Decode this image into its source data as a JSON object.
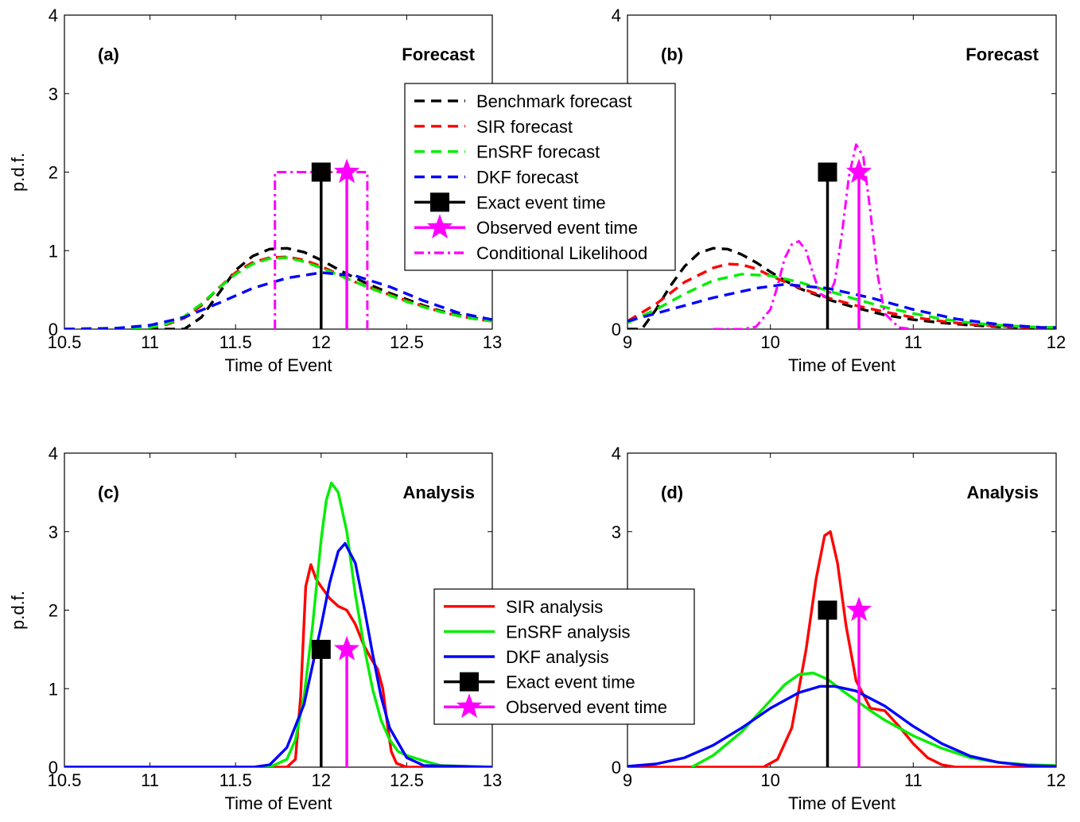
{
  "chart_data": [
    {
      "panel": "a",
      "type": "line",
      "panel_label": "(a)",
      "stage_label": "Forecast",
      "xlabel": "Time of Event",
      "ylabel": "p.d.f.",
      "xlim": [
        10.5,
        13
      ],
      "ylim": [
        0,
        4
      ],
      "xticks": [
        "10.5",
        "11",
        "11.5",
        "12",
        "12.5",
        "13"
      ],
      "yticks": [
        "0",
        "1",
        "2",
        "3",
        "4"
      ],
      "series": [
        {
          "name": "Benchmark forecast",
          "color": "#000000",
          "dash": "dashed",
          "x": [
            10.5,
            11.0,
            11.2,
            11.3,
            11.4,
            11.5,
            11.6,
            11.7,
            11.8,
            11.9,
            12.0,
            12.1,
            12.2,
            12.3,
            12.4,
            12.5,
            12.6,
            12.7,
            12.8,
            12.9,
            13.0
          ],
          "y": [
            0,
            0,
            0.0,
            0.15,
            0.45,
            0.75,
            0.93,
            1.02,
            1.03,
            0.98,
            0.88,
            0.76,
            0.65,
            0.55,
            0.46,
            0.38,
            0.3,
            0.23,
            0.18,
            0.14,
            0.11
          ]
        },
        {
          "name": "SIR forecast",
          "color": "#ff0000",
          "dash": "dashed",
          "x": [
            10.5,
            11.0,
            11.1,
            11.2,
            11.3,
            11.4,
            11.5,
            11.6,
            11.7,
            11.8,
            11.9,
            12.0,
            12.1,
            12.2,
            12.3,
            12.4,
            12.5,
            12.6,
            12.7,
            12.8,
            12.9,
            13.0
          ],
          "y": [
            0,
            0.02,
            0.06,
            0.14,
            0.3,
            0.52,
            0.72,
            0.85,
            0.91,
            0.92,
            0.88,
            0.8,
            0.7,
            0.6,
            0.52,
            0.44,
            0.36,
            0.29,
            0.22,
            0.17,
            0.13,
            0.1
          ]
        },
        {
          "name": "EnSRF forecast",
          "color": "#00ee00",
          "dash": "dashed",
          "x": [
            10.5,
            11.0,
            11.1,
            11.2,
            11.3,
            11.4,
            11.5,
            11.6,
            11.7,
            11.8,
            11.9,
            12.0,
            12.1,
            12.2,
            12.3,
            12.4,
            12.5,
            12.6,
            12.7,
            12.8,
            12.9,
            13.0
          ],
          "y": [
            0,
            0.02,
            0.07,
            0.16,
            0.32,
            0.52,
            0.7,
            0.83,
            0.9,
            0.91,
            0.86,
            0.78,
            0.69,
            0.6,
            0.51,
            0.43,
            0.35,
            0.28,
            0.22,
            0.17,
            0.13,
            0.1
          ]
        },
        {
          "name": "DKF forecast",
          "color": "#0000ff",
          "dash": "dashed",
          "x": [
            10.5,
            10.8,
            11.0,
            11.2,
            11.4,
            11.6,
            11.8,
            12.0,
            12.2,
            12.4,
            12.6,
            12.8,
            13.0
          ],
          "y": [
            0,
            0.01,
            0.05,
            0.15,
            0.33,
            0.52,
            0.65,
            0.72,
            0.68,
            0.54,
            0.36,
            0.21,
            0.12
          ]
        },
        {
          "name": "Conditional Likelihood",
          "color": "#ff00ff",
          "dash": "dashdot",
          "x": [
            11.73,
            11.73,
            12.27,
            12.27
          ],
          "y": [
            0,
            2,
            2,
            0
          ]
        }
      ],
      "exact_event": {
        "name": "Exact event time",
        "x": 12.0,
        "y": 2
      },
      "observed_event": {
        "name": "Observed event time",
        "x": 12.15,
        "y": 2
      },
      "legend": "top-right"
    },
    {
      "panel": "b",
      "type": "line",
      "panel_label": "(b)",
      "stage_label": "Forecast",
      "xlabel": "Time of Event",
      "ylabel": "",
      "xlim": [
        9,
        12
      ],
      "ylim": [
        0,
        4
      ],
      "xticks": [
        "9",
        "10",
        "11",
        "12"
      ],
      "yticks": [
        "0",
        "1",
        "2",
        "3",
        "4"
      ],
      "series": [
        {
          "name": "Benchmark forecast",
          "color": "#000000",
          "dash": "dashed",
          "x": [
            9.0,
            9.1,
            9.2,
            9.3,
            9.4,
            9.5,
            9.6,
            9.7,
            9.8,
            9.9,
            10.0,
            10.1,
            10.2,
            10.4,
            10.6,
            10.8,
            11.0,
            11.2,
            11.4,
            11.6,
            11.8,
            12.0
          ],
          "y": [
            0.0,
            0.0,
            0.25,
            0.55,
            0.8,
            0.97,
            1.03,
            1.02,
            0.95,
            0.85,
            0.73,
            0.62,
            0.52,
            0.38,
            0.27,
            0.18,
            0.12,
            0.08,
            0.05,
            0.03,
            0.02,
            0.01
          ]
        },
        {
          "name": "SIR forecast",
          "color": "#ff0000",
          "dash": "dashed",
          "x": [
            9.0,
            9.2,
            9.4,
            9.6,
            9.7,
            9.8,
            9.9,
            10.0,
            10.2,
            10.4,
            10.6,
            10.8,
            11.0,
            11.2,
            11.4,
            11.6,
            11.8,
            12.0
          ],
          "y": [
            0.1,
            0.32,
            0.6,
            0.78,
            0.83,
            0.82,
            0.77,
            0.68,
            0.53,
            0.4,
            0.3,
            0.22,
            0.15,
            0.1,
            0.06,
            0.04,
            0.02,
            0.01
          ]
        },
        {
          "name": "EnSRF forecast",
          "color": "#00ee00",
          "dash": "dashed",
          "x": [
            9.0,
            9.2,
            9.4,
            9.6,
            9.8,
            10.0,
            10.2,
            10.4,
            10.6,
            10.8,
            11.0,
            11.2,
            11.4,
            11.6,
            11.8,
            12.0
          ],
          "y": [
            0.08,
            0.25,
            0.45,
            0.62,
            0.7,
            0.68,
            0.6,
            0.49,
            0.38,
            0.28,
            0.2,
            0.13,
            0.08,
            0.05,
            0.03,
            0.02
          ]
        },
        {
          "name": "DKF forecast",
          "color": "#0000ff",
          "dash": "dashed",
          "x": [
            9.0,
            9.3,
            9.6,
            9.9,
            10.1,
            10.4,
            10.7,
            11.0,
            11.3,
            11.6,
            11.9,
            12.0
          ],
          "y": [
            0.1,
            0.25,
            0.4,
            0.52,
            0.57,
            0.52,
            0.4,
            0.25,
            0.13,
            0.06,
            0.02,
            0.02
          ]
        },
        {
          "name": "Conditional Likelihood",
          "color": "#ff00ff",
          "dash": "dashdot",
          "x": [
            9.6,
            9.8,
            9.9,
            10.0,
            10.05,
            10.1,
            10.15,
            10.2,
            10.25,
            10.3,
            10.35,
            10.4,
            10.45,
            10.5,
            10.55,
            10.6,
            10.65,
            10.7,
            10.75,
            10.8,
            10.9,
            11.0
          ],
          "y": [
            0,
            0,
            0.03,
            0.25,
            0.55,
            0.9,
            1.08,
            1.12,
            1.0,
            0.7,
            0.45,
            0.4,
            0.6,
            1.2,
            1.95,
            2.35,
            2.2,
            1.5,
            0.7,
            0.2,
            0.02,
            0
          ]
        }
      ],
      "exact_event": {
        "name": "Exact event time",
        "x": 10.4,
        "y": 2
      },
      "observed_event": {
        "name": "Observed event time",
        "x": 10.62,
        "y": 2
      }
    },
    {
      "panel": "c",
      "type": "line",
      "panel_label": "(c)",
      "stage_label": "Analysis",
      "xlabel": "Time of Event",
      "ylabel": "p.d.f.",
      "xlim": [
        10.5,
        13
      ],
      "ylim": [
        0,
        4
      ],
      "xticks": [
        "10.5",
        "11",
        "11.5",
        "12",
        "12.5",
        "13"
      ],
      "yticks": [
        "0",
        "1",
        "2",
        "3",
        "4"
      ],
      "series": [
        {
          "name": "SIR analysis",
          "color": "#ff0000",
          "dash": "solid",
          "x": [
            10.5,
            11.8,
            11.85,
            11.88,
            11.91,
            11.94,
            11.97,
            12.0,
            12.05,
            12.1,
            12.15,
            12.2,
            12.25,
            12.3,
            12.33,
            12.36,
            12.39,
            12.41,
            12.44,
            12.5,
            13.0
          ],
          "y": [
            0,
            0,
            0.1,
            0.9,
            2.3,
            2.58,
            2.4,
            2.3,
            2.15,
            2.05,
            2.0,
            1.82,
            1.55,
            1.35,
            1.25,
            1.0,
            0.5,
            0.2,
            0.05,
            0,
            0
          ]
        },
        {
          "name": "EnSRF analysis",
          "color": "#00ee00",
          "dash": "solid",
          "x": [
            10.5,
            11.7,
            11.8,
            11.85,
            11.9,
            11.95,
            12.0,
            12.03,
            12.06,
            12.1,
            12.15,
            12.2,
            12.25,
            12.3,
            12.35,
            12.4,
            12.45,
            12.5,
            12.6,
            12.7,
            13.0
          ],
          "y": [
            0,
            0,
            0.1,
            0.35,
            0.9,
            1.8,
            2.9,
            3.4,
            3.62,
            3.5,
            3.0,
            2.2,
            1.55,
            1.0,
            0.6,
            0.35,
            0.2,
            0.15,
            0.08,
            0.02,
            0
          ]
        },
        {
          "name": "DKF analysis",
          "color": "#0000ff",
          "dash": "solid",
          "x": [
            10.5,
            11.6,
            11.7,
            11.8,
            11.9,
            12.0,
            12.05,
            12.1,
            12.14,
            12.2,
            12.25,
            12.3,
            12.35,
            12.4,
            12.5,
            12.6,
            13.0
          ],
          "y": [
            0,
            0,
            0.03,
            0.25,
            0.8,
            1.8,
            2.35,
            2.75,
            2.85,
            2.6,
            2.05,
            1.45,
            0.9,
            0.5,
            0.12,
            0.02,
            0
          ]
        }
      ],
      "exact_event": {
        "name": "Exact event time",
        "x": 12.0,
        "y": 1.5
      },
      "observed_event": {
        "name": "Observed event time",
        "x": 12.15,
        "y": 1.5
      },
      "legend": "center-right"
    },
    {
      "panel": "d",
      "type": "line",
      "panel_label": "(d)",
      "stage_label": "Analysis",
      "xlabel": "Time of Event",
      "ylabel": "",
      "xlim": [
        9,
        12
      ],
      "ylim": [
        0,
        4
      ],
      "xticks": [
        "9",
        "10",
        "11",
        "12"
      ],
      "yticks": [
        "0",
        "1",
        "2",
        "3",
        "4"
      ],
      "series": [
        {
          "name": "SIR analysis",
          "color": "#ff0000",
          "dash": "solid",
          "x": [
            9.0,
            9.95,
            10.05,
            10.15,
            10.25,
            10.32,
            10.38,
            10.42,
            10.47,
            10.53,
            10.6,
            10.7,
            10.8,
            10.9,
            11.0,
            11.1,
            11.2,
            11.3,
            12.0
          ],
          "y": [
            0,
            0,
            0.1,
            0.5,
            1.5,
            2.4,
            2.95,
            3.0,
            2.6,
            1.8,
            1.1,
            0.75,
            0.72,
            0.52,
            0.3,
            0.12,
            0.03,
            0,
            0
          ]
        },
        {
          "name": "EnSRF analysis",
          "color": "#00ee00",
          "dash": "solid",
          "x": [
            9.45,
            9.6,
            9.8,
            10.0,
            10.1,
            10.2,
            10.3,
            10.4,
            10.5,
            10.6,
            10.7,
            10.8,
            10.9,
            11.0,
            11.2,
            11.4,
            11.6,
            11.8,
            12.0
          ],
          "y": [
            0,
            0.15,
            0.45,
            0.85,
            1.05,
            1.18,
            1.2,
            1.12,
            0.98,
            0.85,
            0.72,
            0.6,
            0.5,
            0.4,
            0.24,
            0.12,
            0.06,
            0.03,
            0.02
          ]
        },
        {
          "name": "DKF analysis",
          "color": "#0000ff",
          "dash": "solid",
          "x": [
            9.0,
            9.2,
            9.4,
            9.6,
            9.8,
            10.0,
            10.2,
            10.35,
            10.45,
            10.6,
            10.8,
            11.0,
            11.2,
            11.4,
            11.6,
            11.8,
            12.0
          ],
          "y": [
            0.01,
            0.04,
            0.12,
            0.28,
            0.5,
            0.75,
            0.95,
            1.03,
            1.03,
            0.97,
            0.78,
            0.52,
            0.3,
            0.14,
            0.06,
            0.02,
            0.01
          ]
        }
      ],
      "exact_event": {
        "name": "Exact event time",
        "x": 10.4,
        "y": 2
      },
      "observed_event": {
        "name": "Observed event time",
        "x": 10.62,
        "y": 2
      }
    }
  ]
}
